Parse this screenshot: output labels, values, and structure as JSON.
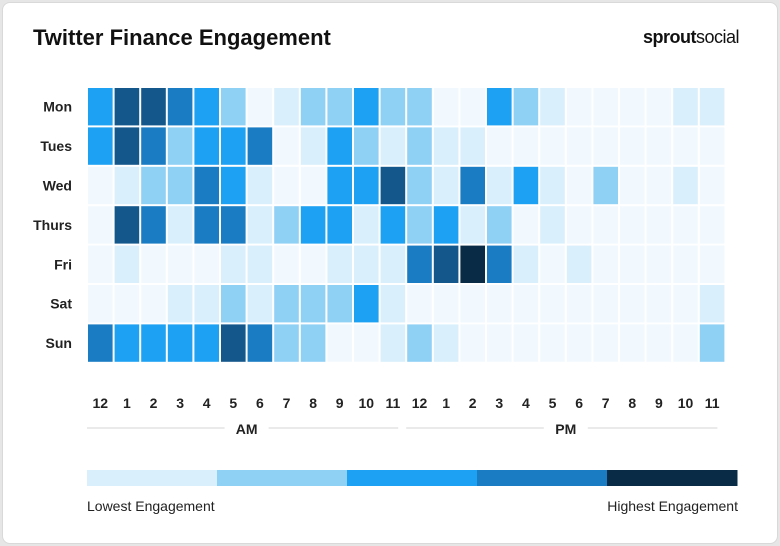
{
  "title": "Twitter Finance Engagement",
  "brand": {
    "part1": "sprout",
    "part2": "social"
  },
  "chart_data": {
    "type": "heatmap",
    "title": "Twitter Finance Engagement",
    "rows": [
      "Mon",
      "Tues",
      "Wed",
      "Thurs",
      "Fri",
      "Sat",
      "Sun"
    ],
    "columns": [
      "12",
      "1",
      "2",
      "3",
      "4",
      "5",
      "6",
      "7",
      "8",
      "9",
      "10",
      "11",
      "12",
      "1",
      "2",
      "3",
      "4",
      "5",
      "6",
      "7",
      "8",
      "9",
      "10",
      "11"
    ],
    "periods": [
      {
        "label": "AM",
        "start": 0,
        "end": 11
      },
      {
        "label": "PM",
        "start": 12,
        "end": 23
      }
    ],
    "scale": {
      "min": 0,
      "max": 5,
      "note": "0 = near none, 1 = lowest, 5 = highest"
    },
    "values": [
      [
        3,
        4,
        4,
        3.5,
        3,
        2,
        0.5,
        1,
        2,
        2,
        3,
        2,
        2,
        0.5,
        0.5,
        3,
        2,
        1,
        0.5,
        0.5,
        0.5,
        0.5,
        1,
        1
      ],
      [
        3,
        4,
        3.5,
        2,
        3,
        3,
        3.5,
        0.5,
        1,
        3,
        2,
        1,
        2,
        1,
        1,
        0.5,
        0.5,
        0.5,
        0.5,
        0.5,
        0.5,
        0.5,
        0.5,
        0.5
      ],
      [
        0.5,
        1,
        2,
        2,
        3.5,
        3,
        1,
        0.5,
        0.5,
        3,
        3,
        4,
        2,
        1,
        3.5,
        1,
        3,
        1,
        0.5,
        2,
        0.5,
        0.5,
        1,
        0.5
      ],
      [
        0.5,
        4,
        3.5,
        1,
        3.5,
        3.5,
        1,
        2,
        3,
        3,
        1,
        3,
        2,
        3,
        1,
        2,
        0.5,
        1,
        0.5,
        0.5,
        0.5,
        0.5,
        0.5,
        0.5
      ],
      [
        0.5,
        1,
        0.5,
        0.5,
        0.5,
        1,
        1,
        0.5,
        0.5,
        1,
        1,
        1,
        3.5,
        4,
        5,
        3.5,
        1,
        0.5,
        1,
        0.5,
        0.5,
        0.5,
        0.5,
        0.5
      ],
      [
        0.5,
        0.5,
        0.5,
        1,
        1,
        2,
        1,
        2,
        2,
        2,
        3,
        1,
        0.5,
        0.5,
        0.5,
        0.5,
        0.5,
        0.5,
        0.5,
        0.5,
        0.5,
        0.5,
        0.5,
        1
      ],
      [
        3.5,
        3,
        3,
        3,
        3,
        4,
        3.5,
        2,
        2,
        0.5,
        0.5,
        1,
        2,
        1,
        0.5,
        0.5,
        0.5,
        0.5,
        0.5,
        0.5,
        0.5,
        0.5,
        0.5,
        2
      ]
    ],
    "colors": {
      "0.5": "#f1f9fe",
      "1": "#d9effc",
      "2": "#8fd0f5",
      "3": "#1da1f2",
      "3.5": "#1a7dc3",
      "4": "#14578b",
      "5": "#0a2b45"
    },
    "legend": {
      "colors": [
        "#d9effc",
        "#8fd0f5",
        "#1da1f2",
        "#1a7dc3",
        "#0a2b45"
      ],
      "low_label": "Lowest Engagement",
      "high_label": "Highest Engagement"
    }
  }
}
